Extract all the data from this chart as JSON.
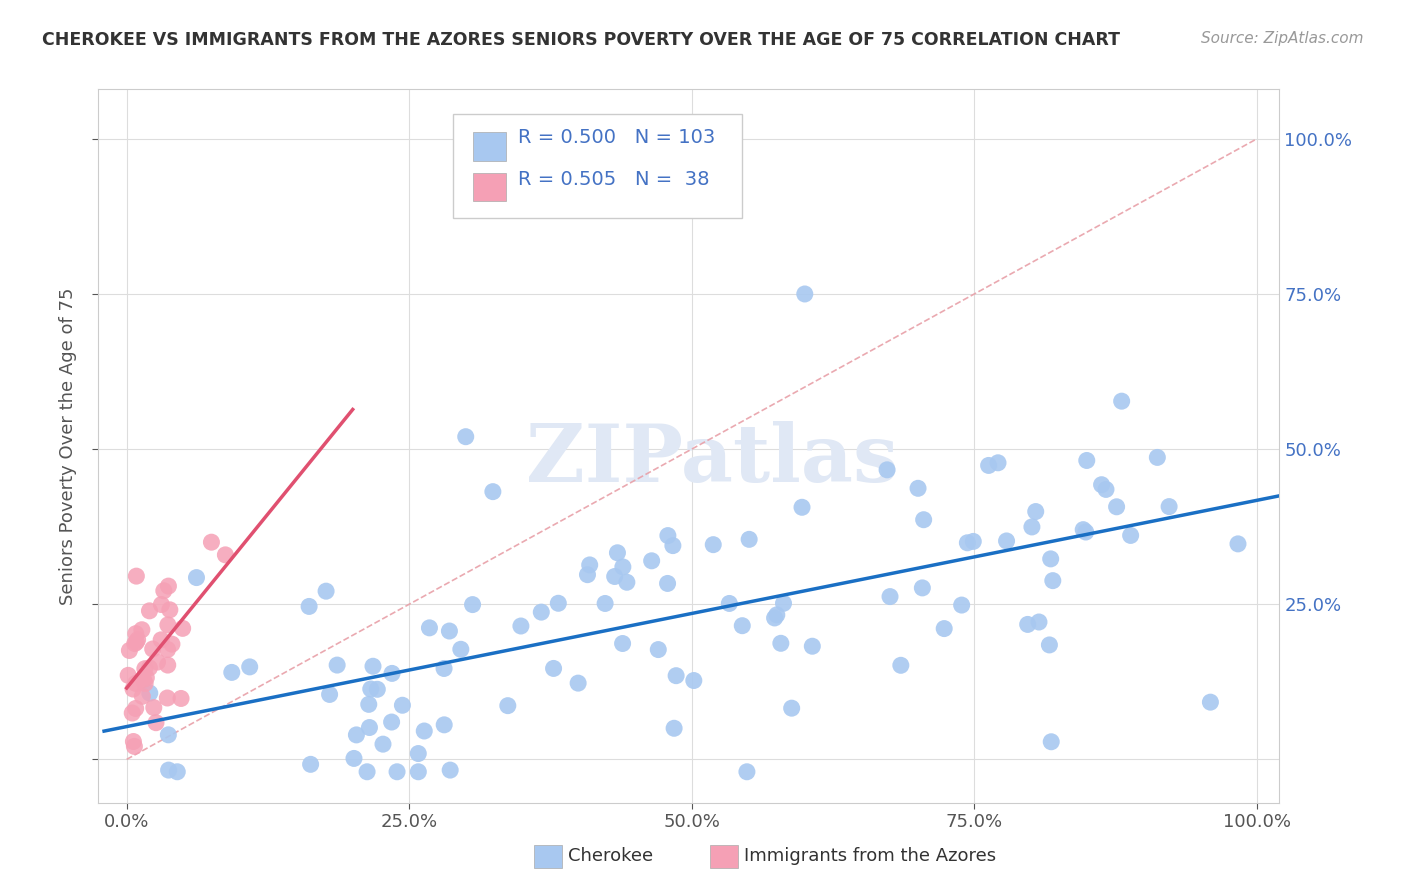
{
  "title": "CHEROKEE VS IMMIGRANTS FROM THE AZORES SENIORS POVERTY OVER THE AGE OF 75 CORRELATION CHART",
  "source": "Source: ZipAtlas.com",
  "ylabel": "Seniors Poverty Over the Age of 75",
  "legend_label1": "Cherokee",
  "legend_label2": "Immigrants from the Azores",
  "r1": 0.5,
  "n1": 103,
  "r2": 0.505,
  "n2": 38,
  "color_cherokee": "#a8c8f0",
  "color_azores": "#f5a0b5",
  "line_color_cherokee": "#1a6fc4",
  "line_color_azores": "#e05070",
  "diag_color": "#e8a0a8",
  "background_color": "#ffffff",
  "tick_color": "#4472c4",
  "title_color": "#333333",
  "ylabel_color": "#555555"
}
